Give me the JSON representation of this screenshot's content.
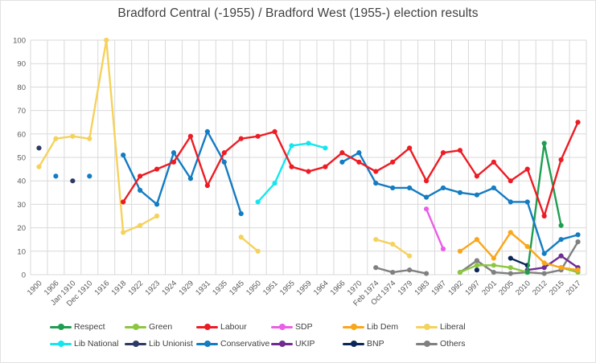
{
  "chart_data": {
    "type": "line",
    "title": "Bradford Central (-1955) / Bradford West (1955-) election results",
    "xlabel": "",
    "ylabel": "",
    "ylim": [
      0,
      100
    ],
    "ytick_step": 10,
    "yticks": [
      0,
      10,
      20,
      30,
      40,
      50,
      60,
      70,
      80,
      90,
      100
    ],
    "grid": true,
    "legend_position": "bottom",
    "categories": [
      "1900",
      "1906",
      "Jan 1910",
      "Dec 1910",
      "1916",
      "1918",
      "1922",
      "1923",
      "1924",
      "1929",
      "1931",
      "1935",
      "1945",
      "1950",
      "1951",
      "1955",
      "1959",
      "1964",
      "1966",
      "1970",
      "Feb 1974",
      "Oct 1974",
      "1979",
      "1983",
      "1987",
      "1992",
      "1997",
      "2001",
      "2005",
      "2010",
      "2012",
      "2015",
      "2017"
    ],
    "series": [
      {
        "name": "Respect",
        "color": "#1e9e50",
        "values": [
          null,
          null,
          null,
          null,
          null,
          null,
          null,
          null,
          null,
          null,
          null,
          null,
          null,
          null,
          null,
          null,
          null,
          null,
          null,
          null,
          null,
          null,
          null,
          null,
          null,
          null,
          null,
          null,
          null,
          1,
          56,
          21,
          null
        ]
      },
      {
        "name": "Green",
        "color": "#8dc63f",
        "values": [
          null,
          null,
          null,
          null,
          null,
          null,
          null,
          null,
          null,
          null,
          null,
          null,
          null,
          null,
          null,
          null,
          null,
          null,
          null,
          null,
          null,
          null,
          null,
          null,
          null,
          1,
          4,
          4,
          3,
          1,
          null,
          3,
          1
        ]
      },
      {
        "name": "Labour",
        "color": "#ed1c24",
        "values": [
          null,
          null,
          null,
          null,
          null,
          31,
          42,
          45,
          48,
          59,
          38,
          52,
          58,
          59,
          61,
          46,
          44,
          46,
          52,
          48,
          44,
          48,
          54,
          40,
          52,
          53,
          42,
          48,
          40,
          45,
          25,
          49,
          65
        ]
      },
      {
        "name": "SDP",
        "color": "#ea5fe6",
        "values": [
          null,
          null,
          null,
          null,
          null,
          null,
          null,
          null,
          null,
          null,
          null,
          null,
          null,
          null,
          null,
          null,
          null,
          null,
          null,
          null,
          null,
          null,
          null,
          28,
          11,
          null,
          null,
          null,
          null,
          null,
          null,
          null,
          null
        ]
      },
      {
        "name": "Lib Dem",
        "color": "#faa61a",
        "values": [
          null,
          null,
          null,
          null,
          null,
          null,
          null,
          null,
          null,
          null,
          null,
          null,
          null,
          null,
          null,
          null,
          null,
          null,
          null,
          null,
          null,
          null,
          null,
          null,
          null,
          10,
          15,
          7,
          18,
          12,
          5,
          3,
          2
        ]
      },
      {
        "name": "Liberal",
        "color": "#f5d25c",
        "values": [
          46,
          58,
          59,
          58,
          100,
          18,
          21,
          25,
          null,
          null,
          null,
          null,
          16,
          10,
          null,
          null,
          null,
          null,
          null,
          null,
          15,
          13,
          8,
          null,
          null,
          null,
          null,
          null,
          null,
          null,
          null,
          null,
          null
        ]
      },
      {
        "name": "Lib National",
        "color": "#15e6ee",
        "values": [
          null,
          null,
          null,
          null,
          null,
          null,
          null,
          null,
          null,
          null,
          null,
          null,
          null,
          31,
          39,
          55,
          56,
          54,
          null,
          null,
          null,
          null,
          null,
          null,
          null,
          null,
          null,
          null,
          null,
          null,
          null,
          null,
          null
        ]
      },
      {
        "name": "Lib Unionist",
        "color": "#2d3a66",
        "values": [
          54,
          null,
          40,
          null,
          null,
          null,
          null,
          null,
          null,
          null,
          null,
          null,
          null,
          null,
          null,
          null,
          null,
          null,
          null,
          null,
          null,
          null,
          null,
          null,
          null,
          null,
          null,
          null,
          null,
          null,
          null,
          null,
          null
        ]
      },
      {
        "name": "Conservative",
        "color": "#147cc2",
        "values": [
          null,
          42,
          null,
          42,
          null,
          51,
          36,
          30,
          52,
          41,
          61,
          48,
          26,
          null,
          null,
          null,
          null,
          null,
          48,
          52,
          39,
          37,
          37,
          33,
          37,
          35,
          34,
          37,
          31,
          31,
          9,
          15,
          17
        ]
      },
      {
        "name": "UKIP",
        "color": "#6f2d91",
        "values": [
          null,
          null,
          null,
          null,
          null,
          null,
          null,
          null,
          null,
          null,
          null,
          null,
          null,
          null,
          null,
          null,
          null,
          null,
          null,
          null,
          null,
          null,
          null,
          null,
          null,
          null,
          null,
          null,
          null,
          2,
          3,
          8,
          3
        ]
      },
      {
        "name": "BNP",
        "color": "#0a2757",
        "values": [
          null,
          null,
          null,
          null,
          null,
          null,
          null,
          null,
          null,
          null,
          null,
          null,
          null,
          null,
          null,
          null,
          null,
          null,
          null,
          null,
          null,
          null,
          null,
          null,
          null,
          null,
          2,
          null,
          7,
          4,
          null,
          null,
          null
        ]
      },
      {
        "name": "Others",
        "color": "#808080",
        "values": [
          null,
          null,
          null,
          null,
          null,
          null,
          null,
          null,
          null,
          null,
          null,
          null,
          null,
          null,
          null,
          null,
          null,
          null,
          null,
          null,
          3,
          1,
          2,
          0.5,
          null,
          1,
          6,
          1,
          0.5,
          1,
          0.5,
          2,
          14
        ]
      }
    ]
  },
  "colors": {
    "grid": "#d9d9d9",
    "axis_text": "#595959",
    "title_text": "#3f3f3f"
  }
}
